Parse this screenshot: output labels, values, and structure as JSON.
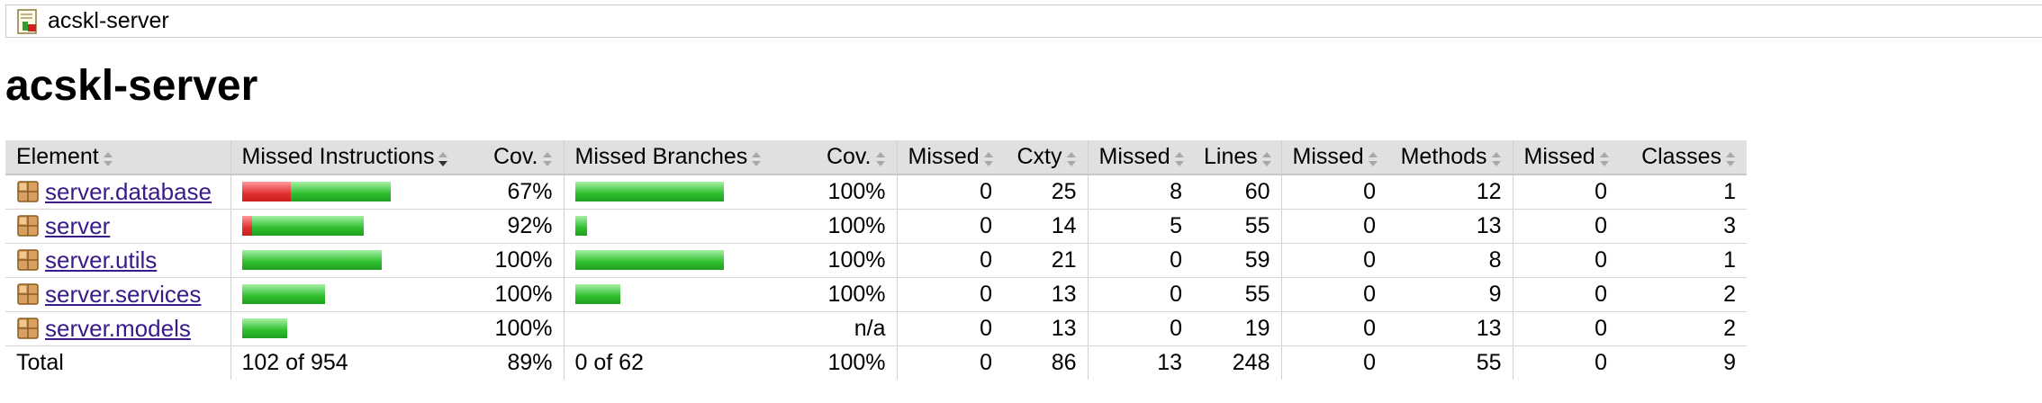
{
  "breadcrumb": {
    "label": "acskl-server",
    "icon": "report-icon"
  },
  "page": {
    "title": "acskl-server"
  },
  "colors": {
    "missed": "#e03030",
    "covered": "#2fbf2f",
    "link": "#3a1a8a",
    "header_bg": "#e0e0e0"
  },
  "table": {
    "headers": {
      "element": "Element",
      "missed_instructions": "Missed Instructions",
      "instr_cov": "Cov.",
      "missed_branches": "Missed Branches",
      "branch_cov": "Cov.",
      "missed_cxty": "Missed",
      "cxty": "Cxty",
      "missed_lines": "Missed",
      "lines": "Lines",
      "missed_methods": "Missed",
      "methods": "Methods",
      "missed_classes": "Missed",
      "classes": "Classes"
    },
    "rows": [
      {
        "name": "server.database",
        "instr_missed_fraction": 0.33,
        "instr_bar_scale": 1.0,
        "instr_cov": "67%",
        "branch_missed_fraction": 0.0,
        "branch_bar_scale": 1.0,
        "branch_cov": "100%",
        "missed_cxty": "0",
        "cxty": "25",
        "missed_lines": "8",
        "lines": "60",
        "missed_methods": "0",
        "methods": "12",
        "missed_classes": "0",
        "classes": "1"
      },
      {
        "name": "server",
        "instr_missed_fraction": 0.08,
        "instr_bar_scale": 0.82,
        "instr_cov": "92%",
        "branch_missed_fraction": 0.0,
        "branch_bar_scale": 0.08,
        "branch_cov": "100%",
        "missed_cxty": "0",
        "cxty": "14",
        "missed_lines": "5",
        "lines": "55",
        "missed_methods": "0",
        "methods": "13",
        "missed_classes": "0",
        "classes": "3"
      },
      {
        "name": "server.utils",
        "instr_missed_fraction": 0.0,
        "instr_bar_scale": 0.94,
        "instr_cov": "100%",
        "branch_missed_fraction": 0.0,
        "branch_bar_scale": 1.0,
        "branch_cov": "100%",
        "missed_cxty": "0",
        "cxty": "21",
        "missed_lines": "0",
        "lines": "59",
        "missed_methods": "0",
        "methods": "8",
        "missed_classes": "0",
        "classes": "1"
      },
      {
        "name": "server.services",
        "instr_missed_fraction": 0.0,
        "instr_bar_scale": 0.56,
        "instr_cov": "100%",
        "branch_missed_fraction": 0.0,
        "branch_bar_scale": 0.3,
        "branch_cov": "100%",
        "missed_cxty": "0",
        "cxty": "13",
        "missed_lines": "0",
        "lines": "55",
        "missed_methods": "0",
        "methods": "9",
        "missed_classes": "0",
        "classes": "2"
      },
      {
        "name": "server.models",
        "instr_missed_fraction": 0.0,
        "instr_bar_scale": 0.3,
        "instr_cov": "100%",
        "branch_missed_fraction": null,
        "branch_bar_scale": 0.0,
        "branch_cov": "n/a",
        "missed_cxty": "0",
        "cxty": "13",
        "missed_lines": "0",
        "lines": "19",
        "missed_methods": "0",
        "methods": "13",
        "missed_classes": "0",
        "classes": "2"
      }
    ],
    "total": {
      "label": "Total",
      "instr": "102 of 954",
      "instr_cov": "89%",
      "branch": "0 of 62",
      "branch_cov": "100%",
      "missed_cxty": "0",
      "cxty": "86",
      "missed_lines": "13",
      "lines": "248",
      "missed_methods": "0",
      "methods": "55",
      "missed_classes": "0",
      "classes": "9"
    }
  }
}
